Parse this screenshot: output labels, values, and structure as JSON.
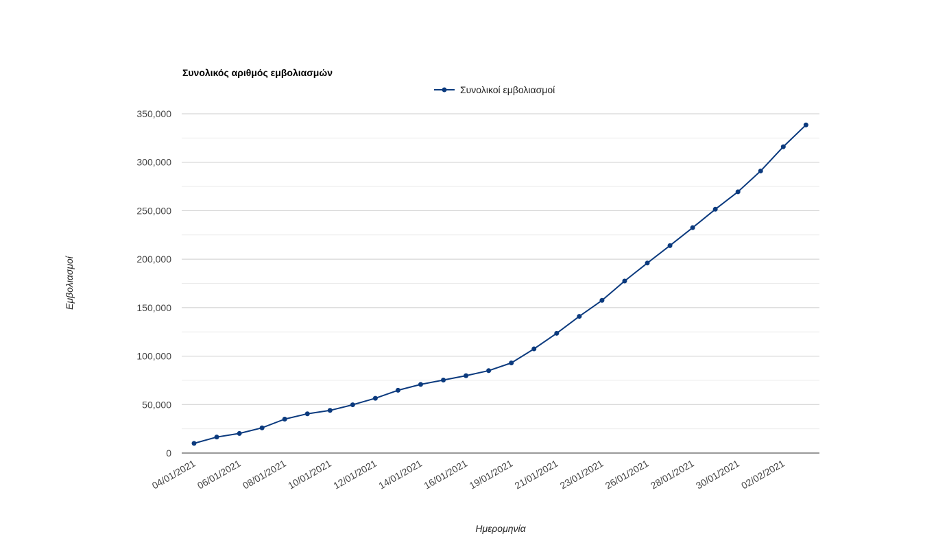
{
  "chart_data": {
    "type": "line",
    "title": "Συνολικός αριθμός εμβολιασμών",
    "xlabel": "Ημερομηνία",
    "ylabel": "Εμβολιασμοί",
    "ylim": [
      0,
      350000
    ],
    "y_ticks": [
      0,
      50000,
      100000,
      150000,
      200000,
      250000,
      300000,
      350000
    ],
    "y_tick_labels": [
      "0",
      "50,000",
      "100,000",
      "150,000",
      "200,000",
      "250,000",
      "300,000",
      "350,000"
    ],
    "grid": true,
    "legend_position": "top",
    "color": "#0b3a7e",
    "x": [
      "04/01/2021",
      "05/01/2021",
      "06/01/2021",
      "07/01/2021",
      "08/01/2021",
      "09/01/2021",
      "10/01/2021",
      "11/01/2021",
      "12/01/2021",
      "13/01/2021",
      "14/01/2021",
      "15/01/2021",
      "16/01/2021",
      "18/01/2021",
      "19/01/2021",
      "20/01/2021",
      "21/01/2021",
      "22/01/2021",
      "23/01/2021",
      "25/01/2021",
      "26/01/2021",
      "27/01/2021",
      "28/01/2021",
      "29/01/2021",
      "30/01/2021",
      "01/02/2021",
      "02/02/2021",
      "03/02/2021"
    ],
    "x_tick_labels": [
      "04/01/2021",
      "06/01/2021",
      "08/01/2021",
      "10/01/2021",
      "12/01/2021",
      "14/01/2021",
      "16/01/2021",
      "19/01/2021",
      "21/01/2021",
      "23/01/2021",
      "26/01/2021",
      "28/01/2021",
      "30/01/2021",
      "02/02/2021"
    ],
    "series": [
      {
        "name": "Συνολικοί εμβολιασμοί",
        "values": [
          10000,
          16500,
          20200,
          26000,
          35000,
          40500,
          44000,
          49800,
          56500,
          64800,
          70800,
          75300,
          79800,
          85000,
          93000,
          107500,
          123500,
          141000,
          157500,
          177500,
          196000,
          214000,
          232500,
          251500,
          269500,
          291000,
          316000,
          338500
        ]
      }
    ]
  }
}
